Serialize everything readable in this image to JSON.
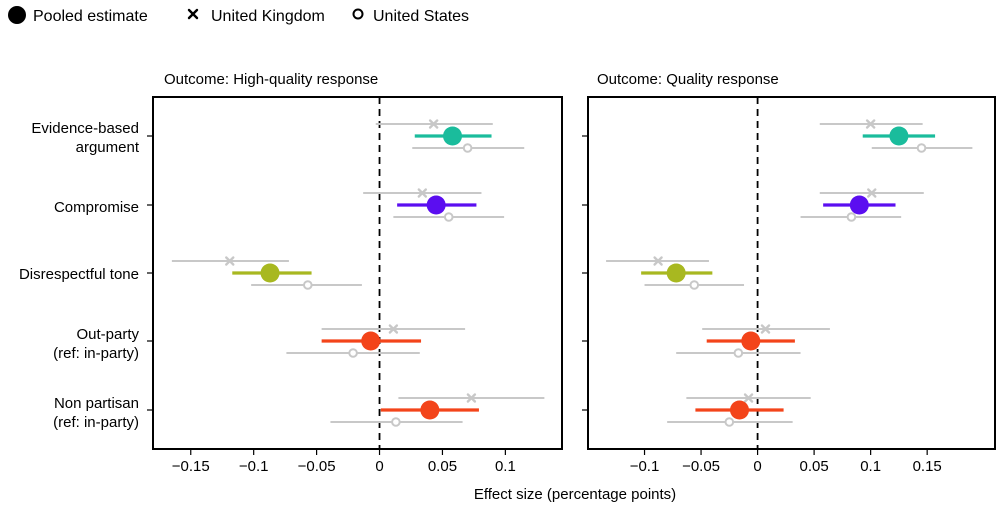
{
  "chart_data": {
    "type": "forest",
    "legend": {
      "placement": "top-left",
      "entries": [
        {
          "label": "Pooled estimate",
          "marker": "filled-circle"
        },
        {
          "label": "United Kingdom",
          "marker": "cross"
        },
        {
          "label": "United States",
          "marker": "open-circle"
        }
      ]
    },
    "xlabel": "Effect size (percentage points)",
    "categories": [
      "Evidence-based\nargument",
      "Compromise",
      "Disrespectful tone",
      "Out-party\n(ref: in-party)",
      "Non partisan\n(ref: in-party)"
    ],
    "colors": {
      "Evidence-based\nargument": "#1ABC9C",
      "Compromise": "#5B0EF0",
      "Disrespectful tone": "#A8B820",
      "Out-party\n(ref: in-party)": "#F3441A",
      "Non partisan\n(ref: in-party)": "#F3441A",
      "country": "#C8C8C8"
    },
    "panels": [
      {
        "title": "Outcome: High-quality response",
        "xlim": [
          -0.18,
          0.145
        ],
        "ticks": [
          -0.15,
          -0.1,
          -0.05,
          0,
          0.05,
          0.1
        ],
        "tick_labels": [
          "−0.15",
          "−0.1",
          "−0.05",
          "0",
          "0.05",
          "0.1"
        ],
        "reference_line": 0,
        "rows": [
          {
            "pooled": [
              0.058,
              0.028,
              0.089
            ],
            "uk": [
              0.043,
              -0.003,
              0.09
            ],
            "us": [
              0.07,
              0.026,
              0.115
            ]
          },
          {
            "pooled": [
              0.045,
              0.014,
              0.077
            ],
            "uk": [
              0.034,
              -0.013,
              0.081
            ],
            "us": [
              0.055,
              0.011,
              0.099
            ]
          },
          {
            "pooled": [
              -0.087,
              -0.117,
              -0.054
            ],
            "uk": [
              -0.119,
              -0.165,
              -0.072
            ],
            "us": [
              -0.057,
              -0.102,
              -0.014
            ]
          },
          {
            "pooled": [
              -0.007,
              -0.046,
              0.033
            ],
            "uk": [
              0.011,
              -0.046,
              0.068
            ],
            "us": [
              -0.021,
              -0.074,
              0.032
            ]
          },
          {
            "pooled": [
              0.04,
              0.001,
              0.079
            ],
            "uk": [
              0.073,
              0.015,
              0.131
            ],
            "us": [
              0.013,
              -0.039,
              0.066
            ]
          }
        ]
      },
      {
        "title": "Outcome: Quality response",
        "xlim": [
          -0.15,
          0.21
        ],
        "ticks": [
          -0.1,
          -0.05,
          0,
          0.05,
          0.1,
          0.15
        ],
        "tick_labels": [
          "−0.1",
          "−0.05",
          "0",
          "0.05",
          "0.1",
          "0.15"
        ],
        "reference_line": 0,
        "rows": [
          {
            "pooled": [
              0.125,
              0.093,
              0.157
            ],
            "uk": [
              0.1,
              0.055,
              0.146
            ],
            "us": [
              0.145,
              0.101,
              0.19
            ]
          },
          {
            "pooled": [
              0.09,
              0.058,
              0.122
            ],
            "uk": [
              0.101,
              0.055,
              0.147
            ],
            "us": [
              0.083,
              0.038,
              0.127
            ]
          },
          {
            "pooled": [
              -0.072,
              -0.103,
              -0.04
            ],
            "uk": [
              -0.088,
              -0.134,
              -0.043
            ],
            "us": [
              -0.056,
              -0.1,
              -0.012
            ]
          },
          {
            "pooled": [
              -0.006,
              -0.045,
              0.033
            ],
            "uk": [
              0.007,
              -0.049,
              0.064
            ],
            "us": [
              -0.017,
              -0.072,
              0.038
            ]
          },
          {
            "pooled": [
              -0.016,
              -0.055,
              0.023
            ],
            "uk": [
              -0.008,
              -0.063,
              0.047
            ],
            "us": [
              -0.025,
              -0.08,
              0.031
            ]
          }
        ]
      }
    ]
  }
}
